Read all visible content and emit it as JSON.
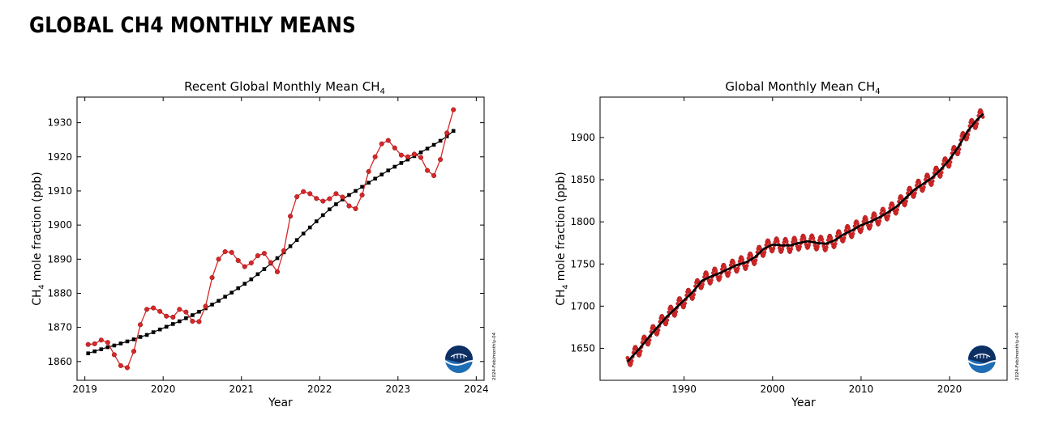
{
  "page_title": "GLOBAL CH4 MONTHLY MEANS",
  "colors": {
    "monthly": "#d62728",
    "trend": "#000000",
    "noaa_blue": "#1f6db5",
    "noaa_navy": "#0c2f64"
  },
  "chart_data": [
    {
      "type": "line",
      "title_main": "Recent Global Monthly Mean CH",
      "title_sub": "4",
      "xlabel": "Year",
      "ylabel_main": "CH",
      "ylabel_sub": "4",
      "ylabel_rest": " mole fraction (ppb)",
      "watermark": "2024-Feb/monthly-04",
      "xlim": [
        2018.9,
        2024.1
      ],
      "ylim": [
        1854.5,
        1937.5
      ],
      "xticks": [
        2019,
        2020,
        2021,
        2022,
        2023,
        2024
      ],
      "yticks": [
        1860,
        1870,
        1880,
        1890,
        1900,
        1910,
        1920,
        1930
      ],
      "x_start": 2019.042,
      "x_step": 0.08333,
      "series": [
        {
          "style": "monthly",
          "values": [
            1865.0,
            1865.2,
            1866.3,
            1865.6,
            1862.0,
            1858.8,
            1858.2,
            1863.0,
            1870.8,
            1875.3,
            1875.7,
            1874.7,
            1873.3,
            1873.0,
            1875.3,
            1874.5,
            1871.8,
            1871.7,
            1876.2,
            1884.6,
            1890.0,
            1892.2,
            1892.0,
            1889.6,
            1887.8,
            1888.9,
            1891.0,
            1891.7,
            1889.0,
            1886.3,
            1892.5,
            1902.6,
            1908.3,
            1909.8,
            1909.2,
            1907.8,
            1907.0,
            1907.7,
            1909.2,
            1908.2,
            1905.6,
            1904.8,
            1908.8,
            1915.7,
            1920.0,
            1923.8,
            1924.8,
            1922.6,
            1920.5,
            1920.0,
            1920.8,
            1919.8,
            1916.0,
            1914.5,
            1919.2,
            1927.0,
            1933.8
          ]
        },
        {
          "style": "trend",
          "values": [
            1862.4,
            1863.0,
            1863.6,
            1864.2,
            1864.7,
            1865.3,
            1865.9,
            1866.5,
            1867.2,
            1867.8,
            1868.6,
            1869.4,
            1870.2,
            1871.0,
            1871.8,
            1872.7,
            1873.6,
            1874.6,
            1875.6,
            1876.7,
            1877.8,
            1879.0,
            1880.2,
            1881.5,
            1882.8,
            1884.1,
            1885.6,
            1887.1,
            1888.7,
            1890.3,
            1892.0,
            1893.8,
            1895.6,
            1897.5,
            1899.3,
            1901.1,
            1902.9,
            1904.6,
            1906.1,
            1907.5,
            1908.8,
            1910.0,
            1911.2,
            1912.4,
            1913.6,
            1914.8,
            1916.0,
            1917.1,
            1918.2,
            1919.2,
            1920.2,
            1921.3,
            1922.4,
            1923.5,
            1924.7,
            1926.0,
            1927.6
          ]
        }
      ]
    },
    {
      "type": "line",
      "title_main": "Global Monthly Mean CH",
      "title_sub": "4",
      "xlabel": "Year",
      "ylabel_main": "CH",
      "ylabel_sub": "4",
      "ylabel_rest": " mole fraction (ppb)",
      "watermark": "2024-Feb/monthly-04",
      "xlim": [
        1980.5,
        2026.5
      ],
      "ylim": [
        1612,
        1948
      ],
      "xticks": [
        1990,
        2000,
        2010,
        2020
      ],
      "yticks": [
        1650,
        1700,
        1750,
        1800,
        1850,
        1900
      ],
      "series": [
        {
          "style": "trend",
          "points": [
            [
              1983.6,
              1634
            ],
            [
              1985,
              1650
            ],
            [
              1986,
              1663
            ],
            [
              1987,
              1675
            ],
            [
              1988,
              1687
            ],
            [
              1989,
              1697
            ],
            [
              1990,
              1707
            ],
            [
              1991,
              1717
            ],
            [
              1992,
              1730
            ],
            [
              1993,
              1735
            ],
            [
              1994,
              1739
            ],
            [
              1995,
              1744
            ],
            [
              1996,
              1749
            ],
            [
              1997,
              1752
            ],
            [
              1998,
              1758
            ],
            [
              1999,
              1768
            ],
            [
              2000,
              1773
            ],
            [
              2001,
              1772
            ],
            [
              2002,
              1772
            ],
            [
              2003,
              1775
            ],
            [
              2004,
              1777
            ],
            [
              2005,
              1775
            ],
            [
              2006,
              1774
            ],
            [
              2007,
              1778
            ],
            [
              2008,
              1785
            ],
            [
              2009,
              1790
            ],
            [
              2010,
              1796
            ],
            [
              2011,
              1800
            ],
            [
              2012,
              1805
            ],
            [
              2013,
              1811
            ],
            [
              2014,
              1818
            ],
            [
              2015,
              1828
            ],
            [
              2016,
              1838
            ],
            [
              2017,
              1845
            ],
            [
              2018,
              1852
            ],
            [
              2019,
              1862
            ],
            [
              2020,
              1874
            ],
            [
              2021,
              1889
            ],
            [
              2022,
              1907
            ],
            [
              2023,
              1920
            ],
            [
              2023.8,
              1928
            ]
          ]
        }
      ]
    }
  ]
}
